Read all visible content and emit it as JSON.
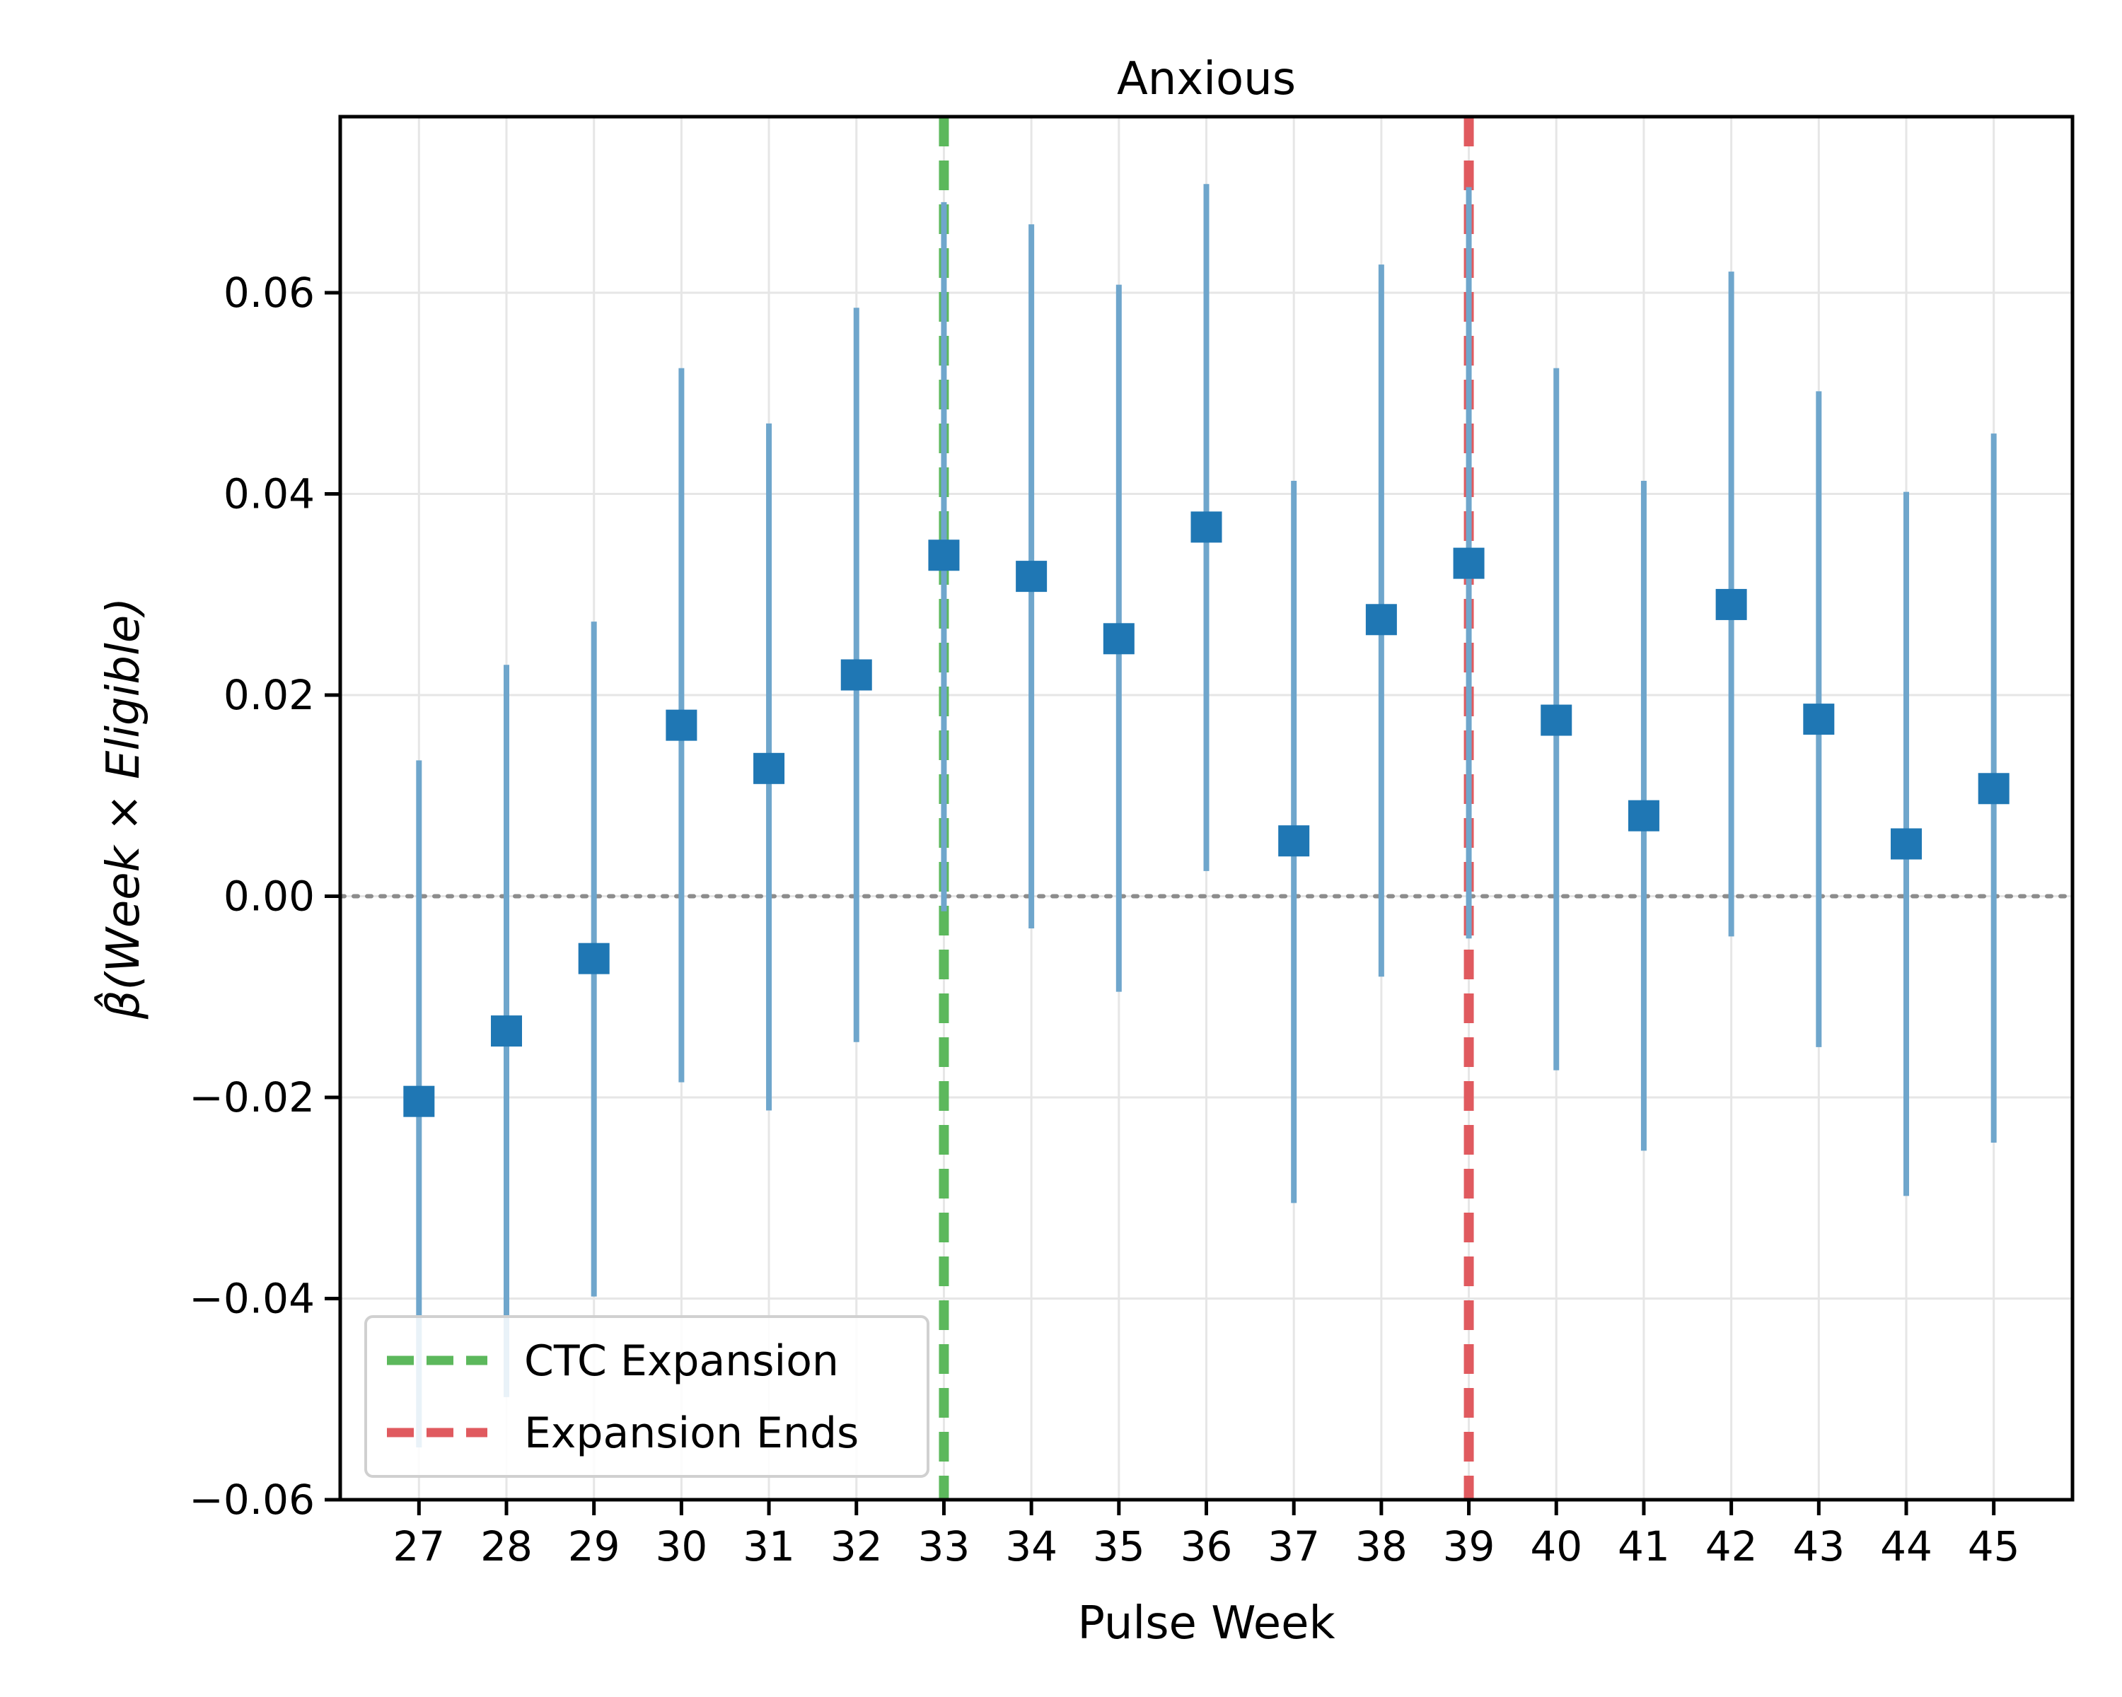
{
  "chart_data": {
    "type": "scatter",
    "title": "Anxious",
    "xlabel": "Pulse Week",
    "ylabel": "β̂(Week × Eligible)",
    "x_ticks": [
      "27",
      "28",
      "29",
      "30",
      "31",
      "32",
      "33",
      "34",
      "35",
      "36",
      "37",
      "38",
      "39",
      "40",
      "41",
      "42",
      "43",
      "44",
      "45"
    ],
    "y_ticks": [
      "0.06",
      "0.04",
      "0.02",
      "0.00",
      "−0.02",
      "−0.04",
      "−0.06"
    ],
    "y_tick_values": [
      0.06,
      0.04,
      0.02,
      0.0,
      -0.02,
      -0.04,
      -0.06
    ],
    "ylim": [
      -0.06,
      0.0775
    ],
    "xlim": [
      26.1,
      45.9
    ],
    "grid": true,
    "reference_line_y": 0,
    "series": [
      {
        "marker": "square",
        "color": "#1f77b4",
        "errorbar_color": "#6fa6cc",
        "points": [
          {
            "x": 27,
            "y": -0.0204,
            "lo": -0.0548,
            "hi": 0.0135
          },
          {
            "x": 28,
            "y": -0.0134,
            "lo": -0.0498,
            "hi": 0.023
          },
          {
            "x": 29,
            "y": -0.0062,
            "lo": -0.0398,
            "hi": 0.0273
          },
          {
            "x": 30,
            "y": 0.017,
            "lo": -0.0185,
            "hi": 0.0525
          },
          {
            "x": 31,
            "y": 0.0127,
            "lo": -0.0213,
            "hi": 0.047
          },
          {
            "x": 32,
            "y": 0.022,
            "lo": -0.0145,
            "hi": 0.0585
          },
          {
            "x": 33,
            "y": 0.0339,
            "lo": -0.0015,
            "hi": 0.069
          },
          {
            "x": 34,
            "y": 0.0318,
            "lo": -0.0032,
            "hi": 0.0668
          },
          {
            "x": 35,
            "y": 0.0256,
            "lo": -0.0095,
            "hi": 0.0608
          },
          {
            "x": 36,
            "y": 0.0367,
            "lo": 0.0025,
            "hi": 0.0708
          },
          {
            "x": 37,
            "y": 0.0055,
            "lo": -0.0305,
            "hi": 0.0413
          },
          {
            "x": 38,
            "y": 0.0275,
            "lo": -0.008,
            "hi": 0.0628
          },
          {
            "x": 39,
            "y": 0.0331,
            "lo": -0.0042,
            "hi": 0.0705
          },
          {
            "x": 40,
            "y": 0.0175,
            "lo": -0.0173,
            "hi": 0.0525
          },
          {
            "x": 41,
            "y": 0.008,
            "lo": -0.0253,
            "hi": 0.0413
          },
          {
            "x": 42,
            "y": 0.029,
            "lo": -0.004,
            "hi": 0.0621
          },
          {
            "x": 43,
            "y": 0.0176,
            "lo": -0.015,
            "hi": 0.0502
          },
          {
            "x": 44,
            "y": 0.0052,
            "lo": -0.0298,
            "hi": 0.0402
          },
          {
            "x": 45,
            "y": 0.0107,
            "lo": -0.0245,
            "hi": 0.046
          }
        ]
      }
    ],
    "vlines": [
      {
        "x": 33,
        "label": "CTC Expansion",
        "color": "#5cb85c"
      },
      {
        "x": 39,
        "label": "Expansion Ends",
        "color": "#e05a5f"
      }
    ],
    "legend": {
      "position": "lower-left",
      "entries": [
        "CTC Expansion",
        "Expansion Ends"
      ]
    }
  }
}
